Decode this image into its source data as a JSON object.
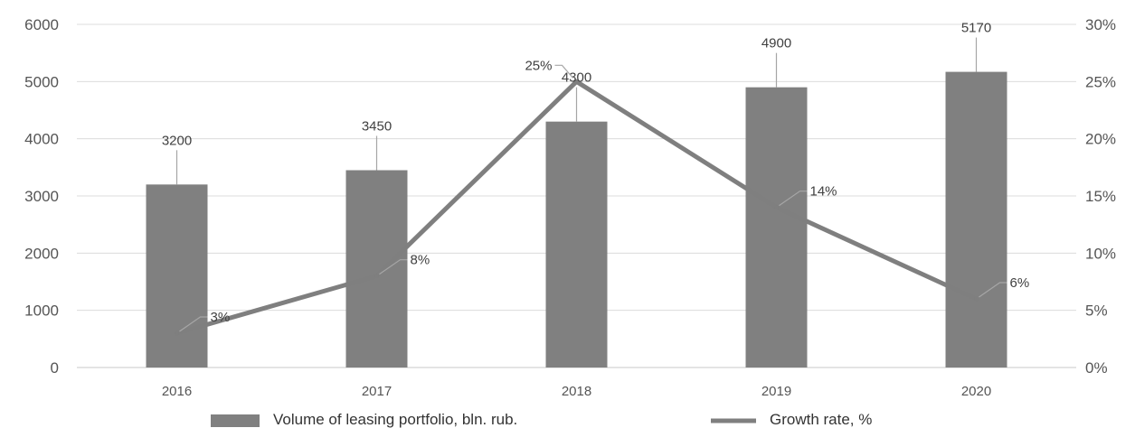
{
  "chart_data": {
    "type": "bar",
    "categories": [
      "2016",
      "2017",
      "2018",
      "2019",
      "2020"
    ],
    "series": [
      {
        "name": "Volume of leasing portfolio, bln. rub.",
        "type": "bar",
        "axis": "left",
        "values": [
          3200,
          3450,
          4300,
          4900,
          5170
        ],
        "labels": [
          "3200",
          "3450",
          "4300",
          "4900",
          "5170"
        ],
        "color": "#808080"
      },
      {
        "name": "Growth rate, %",
        "type": "line",
        "axis": "right",
        "values": [
          3,
          8,
          25,
          14,
          6
        ],
        "labels": [
          "3%",
          "8%",
          "25%",
          "14%",
          "6%"
        ],
        "color": "#7f7f7f"
      }
    ],
    "y_left": {
      "min": 0,
      "max": 6000,
      "ticks": [
        "0",
        "1000",
        "2000",
        "3000",
        "4000",
        "5000",
        "6000"
      ]
    },
    "y_right": {
      "min": 0,
      "max": 30,
      "ticks": [
        "0%",
        "5%",
        "10%",
        "15%",
        "20%",
        "25%",
        "30%"
      ]
    },
    "grid": true,
    "legend": "bottom",
    "title": "",
    "xlabel": "",
    "ylabel": ""
  }
}
